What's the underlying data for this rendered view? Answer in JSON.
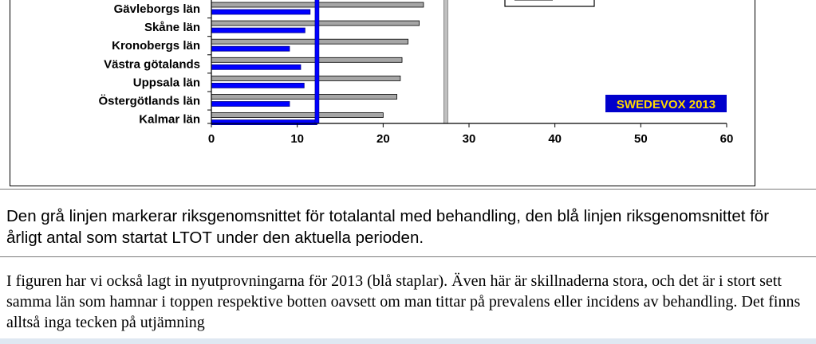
{
  "chart_data": {
    "type": "bar",
    "orientation": "horizontal",
    "categories": [
      "Gävleborgs län",
      "Skåne län",
      "Kronobergs län",
      "Västra götalands",
      "Uppsala län",
      "Östergötlands län",
      "Kalmar län"
    ],
    "series": [
      {
        "values": [
          24.7,
          24.2,
          22.9,
          22.2,
          22.0,
          21.6,
          20.0
        ],
        "color": "#a6a6a6"
      },
      {
        "values": [
          11.5,
          10.9,
          9.1,
          10.4,
          10.8,
          9.1,
          12.3
        ],
        "color": "#0000ff"
      }
    ],
    "reference_lines": [
      {
        "value": 27.3,
        "color": "#a6a6a6"
      },
      {
        "value": 12.3,
        "color": "#0000ff"
      }
    ],
    "xlim": [
      0,
      60
    ],
    "xticks": [
      "0",
      "10",
      "20",
      "30",
      "40",
      "50",
      "60"
    ],
    "watermark": "SWEDEVOX 2013",
    "watermark_colors": {
      "background": "#0000cc",
      "text": "#ffd800"
    }
  },
  "caption": "Den grå linjen markerar riksgenomsnittet för totalantal med behandling, den blå linjen riksgenomsnittet för årligt antal som startat LTOT under den aktuella perioden.",
  "body_text": "I figuren har vi också lagt in nyutprovningarna för 2013 (blå staplar). Även här är skillnaderna stora, och det är i stort sett samma län som hamnar i toppen respektive botten oavsett om man tittar på prevalens eller incidens av behandling. Det finns alltså inga tecken på utjämning"
}
